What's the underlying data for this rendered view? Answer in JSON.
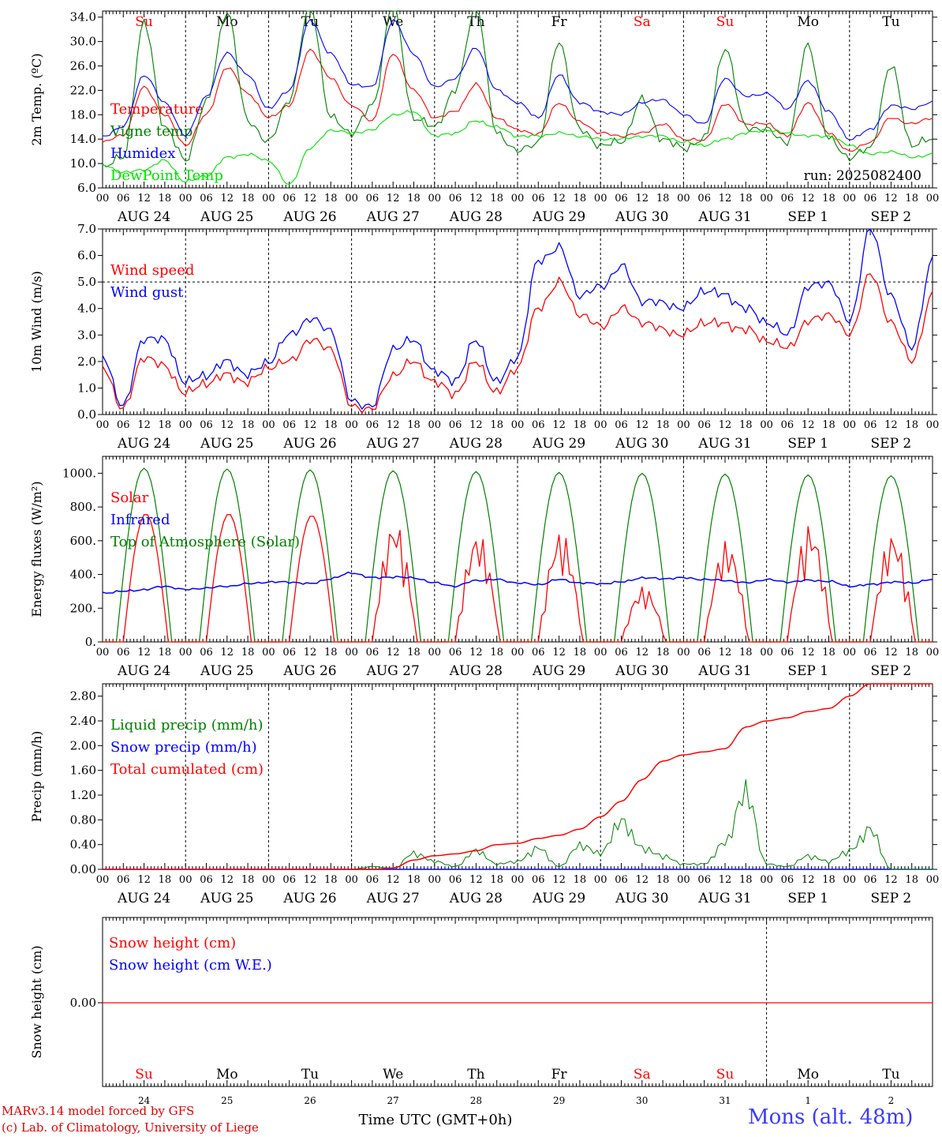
{
  "footer": {
    "model": "MARv3.14 model forced by GFS",
    "copyright": "(c) Lab. of Climatology, University of Liege",
    "station": "Mons (alt. 48m)",
    "xlabel": "Time UTC (GMT+0h)"
  },
  "time_axis": {
    "hour_ticks": [
      "00",
      "06",
      "12",
      "18"
    ],
    "last_tick": "00",
    "dates": [
      "AUG 24",
      "AUG 25",
      "AUG 26",
      "AUG 27",
      "AUG 28",
      "AUG 29",
      "AUG 30",
      "AUG 31",
      "SEP  1",
      "SEP  2"
    ],
    "weekdays": [
      "Su",
      "Mo",
      "Tu",
      "We",
      "Th",
      "Fr",
      "Sa",
      "Su",
      "Mo",
      "Tu"
    ],
    "weekend": [
      true,
      false,
      false,
      false,
      false,
      false,
      true,
      true,
      false,
      false
    ],
    "day_numbers": [
      "24",
      "25",
      "26",
      "27",
      "28",
      "29",
      "30",
      "31",
      "1",
      "2"
    ]
  },
  "colors": {
    "red": "#ff0000",
    "green": "#008000",
    "blue": "#0000ff",
    "lime": "#00e000"
  },
  "chart_data": [
    {
      "type": "line",
      "ylabel": "2m Temp. (ºC)",
      "ylim": [
        6,
        35
      ],
      "yticks": [
        "6.0",
        "10.0",
        "14.0",
        "18.0",
        "22.0",
        "26.0",
        "30.0",
        "34.0"
      ],
      "annotation": "run: 2025082400",
      "x_hours": [
        0,
        6,
        12,
        18,
        24,
        30,
        36,
        42,
        48,
        54,
        60,
        66,
        72,
        78,
        84,
        90,
        96,
        102,
        108,
        114,
        120,
        126,
        132,
        138,
        144,
        150,
        156,
        162,
        168,
        174,
        180,
        186,
        192,
        198,
        204,
        210,
        216,
        222,
        228,
        234,
        240
      ],
      "series": [
        {
          "name": "Temperature",
          "color": "red",
          "values": [
            13.5,
            14.7,
            22.5,
            18.0,
            13.0,
            18.0,
            25.8,
            21.5,
            17.5,
            19.5,
            28.7,
            24.0,
            19.5,
            17.0,
            28.0,
            22.0,
            17.5,
            18.5,
            23.0,
            17.5,
            15.5,
            14.8,
            20.0,
            16.8,
            15.0,
            14.5,
            15.0,
            16.5,
            14.0,
            13.8,
            19.8,
            16.5,
            16.5,
            14.5,
            20.0,
            15.0,
            12.0,
            13.5,
            17.5,
            16.5,
            17.5
          ]
        },
        {
          "name": "Vigne temp",
          "color": "green",
          "values": [
            9.5,
            11.0,
            33.0,
            16.0,
            10.5,
            20.0,
            35.0,
            17.0,
            13.5,
            20.5,
            36.0,
            17.5,
            15.0,
            19.5,
            36.0,
            17.5,
            16.0,
            22.0,
            36.0,
            15.0,
            12.0,
            13.5,
            30.0,
            15.5,
            13.0,
            13.5,
            20.5,
            14.0,
            12.5,
            14.0,
            29.0,
            16.0,
            15.5,
            13.5,
            29.5,
            14.0,
            11.0,
            12.5,
            26.0,
            13.0,
            14.0
          ]
        },
        {
          "name": "Humidex",
          "color": "blue",
          "values": [
            14.5,
            16.0,
            24.5,
            20.0,
            14.5,
            21.0,
            28.2,
            24.5,
            19.0,
            22.0,
            33.5,
            28.0,
            23.0,
            22.5,
            33.5,
            28.0,
            22.5,
            24.0,
            29.0,
            22.0,
            20.0,
            17.5,
            24.5,
            20.0,
            18.5,
            18.0,
            20.0,
            20.5,
            18.0,
            16.5,
            24.0,
            21.0,
            21.5,
            19.0,
            23.5,
            18.5,
            14.0,
            15.5,
            19.5,
            19.0,
            20.0
          ]
        },
        {
          "name": "DewPoint Temp",
          "color": "lime",
          "values": [
            9.8,
            8.5,
            9.0,
            10.5,
            7.0,
            8.0,
            11.0,
            11.5,
            10.5,
            6.5,
            12.5,
            15.5,
            15.0,
            15.5,
            18.0,
            18.5,
            14.5,
            15.0,
            17.0,
            16.0,
            14.5,
            14.5,
            15.0,
            14.5,
            14.0,
            14.0,
            14.5,
            14.5,
            13.5,
            13.0,
            14.0,
            15.0,
            15.5,
            15.0,
            14.5,
            14.5,
            13.0,
            11.5,
            12.0,
            11.0,
            11.5
          ]
        }
      ]
    },
    {
      "type": "line",
      "ylabel": "10m Wind (m/s)",
      "ylim": [
        0,
        7
      ],
      "yticks": [
        "0.0",
        "1.0",
        "2.0",
        "3.0",
        "4.0",
        "5.0",
        "6.0",
        "7.0"
      ],
      "ref_line": 5.0,
      "x_hours": [
        0,
        6,
        12,
        18,
        24,
        30,
        36,
        42,
        48,
        54,
        60,
        66,
        72,
        78,
        84,
        90,
        96,
        102,
        108,
        114,
        120,
        126,
        132,
        138,
        144,
        150,
        156,
        162,
        168,
        174,
        180,
        186,
        192,
        198,
        204,
        210,
        216,
        222,
        228,
        234,
        240
      ],
      "series": [
        {
          "name": "Wind speed",
          "color": "red",
          "values": [
            1.8,
            0.2,
            2.2,
            1.8,
            0.8,
            1.2,
            1.5,
            1.2,
            1.8,
            2.0,
            2.8,
            2.5,
            0.3,
            0.2,
            1.5,
            2.0,
            1.2,
            0.8,
            2.0,
            0.8,
            1.8,
            4.0,
            5.0,
            3.8,
            3.3,
            4.0,
            3.5,
            3.2,
            3.0,
            3.5,
            3.4,
            3.2,
            2.8,
            2.5,
            3.5,
            3.8,
            3.0,
            5.3,
            3.5,
            2.0,
            4.5
          ]
        },
        {
          "name": "Wind gust",
          "color": "blue",
          "values": [
            2.2,
            0.3,
            2.9,
            2.8,
            1.2,
            1.5,
            2.0,
            1.5,
            2.0,
            3.0,
            3.6,
            3.2,
            0.5,
            0.3,
            2.5,
            2.8,
            1.6,
            1.3,
            2.8,
            1.2,
            2.2,
            5.8,
            6.3,
            4.5,
            4.8,
            5.6,
            4.3,
            4.2,
            4.0,
            4.7,
            4.5,
            4.0,
            3.5,
            3.0,
            4.8,
            5.0,
            3.5,
            7.0,
            4.5,
            2.5,
            5.8
          ]
        }
      ]
    },
    {
      "type": "line",
      "ylabel": "Energy fluxes (W/m²)",
      "ylim": [
        0,
        1100
      ],
      "yticks": [
        "0.",
        "200.",
        "400.",
        "600.",
        "800.",
        "1000."
      ],
      "peak_values": {
        "toa": [
          1030,
          1025,
          1020,
          1015,
          1010,
          1005,
          1000,
          995,
          990,
          985
        ],
        "solar": [
          760,
          760,
          750,
          720,
          650,
          660,
          330,
          600,
          700,
          650
        ]
      },
      "infrared_values": [
        290,
        300,
        310,
        330,
        310,
        320,
        330,
        345,
        355,
        355,
        345,
        375,
        410,
        380,
        385,
        380,
        350,
        330,
        365,
        370,
        350,
        340,
        370,
        350,
        345,
        355,
        380,
        375,
        380,
        370,
        365,
        350,
        370,
        355,
        365,
        360,
        330,
        340,
        355,
        350,
        370
      ],
      "series": [
        {
          "name": "Solar",
          "color": "red"
        },
        {
          "name": "Infrared",
          "color": "blue"
        },
        {
          "name": "Top of Atmosphere (Solar)",
          "color": "green"
        }
      ]
    },
    {
      "type": "line",
      "ylabel": "Precip (mm/h)",
      "ylim": [
        0,
        3.0
      ],
      "yticks": [
        "0.00",
        "0.40",
        "0.80",
        "1.20",
        "1.60",
        "2.00",
        "2.40",
        "2.80"
      ],
      "x_hours": [
        0,
        72,
        78,
        84,
        90,
        96,
        102,
        108,
        114,
        120,
        126,
        132,
        138,
        144,
        150,
        156,
        162,
        168,
        174,
        180,
        186,
        192,
        198,
        204,
        210,
        216,
        222,
        228,
        234,
        240
      ],
      "cumulated": [
        0,
        0,
        0,
        0.02,
        0.15,
        0.22,
        0.25,
        0.3,
        0.4,
        0.42,
        0.5,
        0.55,
        0.65,
        0.85,
        1.1,
        1.45,
        1.75,
        1.85,
        1.9,
        1.95,
        2.3,
        2.4,
        2.45,
        2.55,
        2.6,
        2.8,
        3.0,
        3.0,
        3.0,
        3.0
      ],
      "liquid": [
        0,
        0,
        0.05,
        0.02,
        0.3,
        0.15,
        0.05,
        0.35,
        0.1,
        0.15,
        0.4,
        0.05,
        0.45,
        0.3,
        0.9,
        0.4,
        0.25,
        0.1,
        0.1,
        0.5,
        1.45,
        0.1,
        0.05,
        0.25,
        0.15,
        0.35,
        0.75,
        0.0,
        0.0,
        0.0
      ],
      "series": [
        {
          "name": "Liquid precip (mm/h)",
          "color": "green"
        },
        {
          "name": "Snow precip (mm/h)",
          "color": "blue"
        },
        {
          "name": "Total cumulated (cm)",
          "color": "red"
        }
      ]
    },
    {
      "type": "line",
      "ylabel": "Snow height (cm)",
      "yticks": [
        "0.00"
      ],
      "values": [
        0.0
      ],
      "series": [
        {
          "name": "Snow height (cm)",
          "color": "red"
        },
        {
          "name": "Snow height (cm W.E.)",
          "color": "blue"
        }
      ]
    }
  ]
}
